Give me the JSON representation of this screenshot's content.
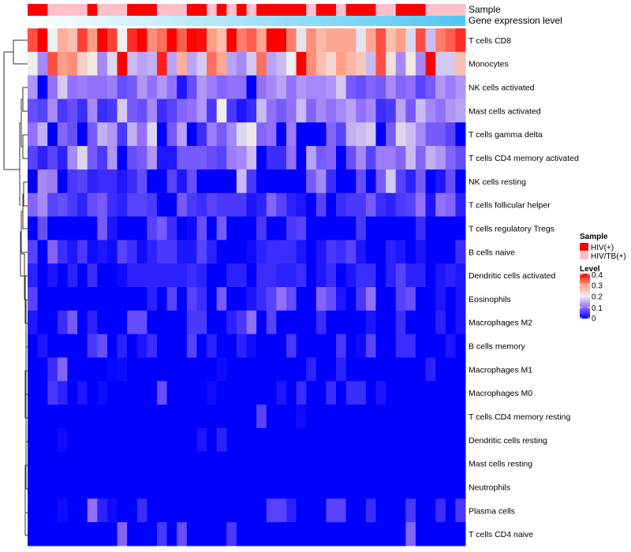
{
  "chart_data": {
    "type": "heatmap",
    "annotations": {
      "sample_label": "Sample",
      "gene_label": "Gene expression level"
    },
    "rows": [
      "T cells CD8",
      "Monocytes",
      "NK cells activated",
      "Mast cells activated",
      "T cells gamma delta",
      "T cells CD4 memory activated",
      "NK cells resting",
      "T cells follicular helper",
      "T cells regulatory  Tregs",
      "B cells naive",
      "Dendritic cells activated",
      "Eosinophils",
      "Macrophages M2",
      "B cells memory",
      "Macrophages M1",
      "Macrophages M0",
      "T cells CD4 memory resting",
      "Dendritic cells resting",
      "Mast cells resting",
      "Neutrophils",
      "Plasma cells",
      "T cells CD4 naive"
    ],
    "sample_groups": [
      1,
      1,
      2,
      2,
      2,
      2,
      1,
      2,
      2,
      2,
      1,
      1,
      1,
      2,
      2,
      2,
      1,
      1,
      2,
      1,
      2,
      1,
      2,
      1,
      1,
      1,
      1,
      1,
      2,
      1,
      1,
      2,
      1,
      1,
      1,
      2,
      2,
      1,
      1,
      1,
      2,
      2,
      2,
      2
    ],
    "values": [
      [
        0.35,
        0.4,
        0.2,
        0.28,
        0.26,
        0.36,
        0.3,
        0.4,
        0.36,
        0.2,
        0.37,
        0.4,
        0.31,
        0.33,
        0.4,
        0.34,
        0.4,
        0.39,
        0.3,
        0.26,
        0.4,
        0.32,
        0.34,
        0.29,
        0.4,
        0.4,
        0.32,
        0.19,
        0.31,
        0.27,
        0.29,
        0.29,
        0.29,
        0.19,
        0.29,
        0.35,
        0.26,
        0.3,
        0.18,
        0.35,
        0.16,
        0.32,
        0.34,
        0.37
      ],
      [
        0.2,
        0.12,
        0.35,
        0.3,
        0.31,
        0.24,
        0.21,
        0.12,
        0.18,
        0.4,
        0.16,
        0.14,
        0.15,
        0.38,
        0.14,
        0.28,
        0.14,
        0.17,
        0.33,
        0.29,
        0.14,
        0.12,
        0.17,
        0.33,
        0.14,
        0.16,
        0.2,
        0.4,
        0.31,
        0.26,
        0.23,
        0.3,
        0.27,
        0.25,
        0.16,
        0.35,
        0.22,
        0.12,
        0.21,
        0.12,
        0.4,
        0.17,
        0.17,
        0.26
      ],
      [
        0.13,
        0.0,
        0.1,
        0.17,
        0.1,
        0.11,
        0.1,
        0.1,
        0.11,
        0.07,
        0.08,
        0.13,
        0.1,
        0.13,
        0.1,
        0.02,
        0.07,
        0.13,
        0.11,
        0.09,
        0.1,
        0.1,
        0.0,
        0.1,
        0.12,
        0.14,
        0.1,
        0.13,
        0.12,
        0.12,
        0.13,
        0.17,
        0.08,
        0.07,
        0.09,
        0.08,
        0.12,
        0.09,
        0.1,
        0.06,
        0.08,
        0.13,
        0.11,
        0.13
      ],
      [
        0.07,
        0.06,
        0.12,
        0.05,
        0.07,
        0.04,
        0.12,
        0.04,
        0.05,
        0.17,
        0.08,
        0.07,
        0.12,
        0.04,
        0.06,
        0.09,
        0.1,
        0.13,
        0.05,
        0.2,
        0.05,
        0.02,
        0.04,
        0.16,
        0.1,
        0.08,
        0.1,
        0.16,
        0.09,
        0.12,
        0.1,
        0.12,
        0.14,
        0.1,
        0.12,
        0.04,
        0.05,
        0.14,
        0.08,
        0.16,
        0.12,
        0.1,
        0.13,
        0.14
      ],
      [
        0.1,
        0.15,
        0.0,
        0.09,
        0.07,
        0.0,
        0.08,
        0.15,
        0.13,
        0.05,
        0.15,
        0.1,
        0.18,
        0.0,
        0.08,
        0.14,
        0.0,
        0.04,
        0.11,
        0.08,
        0.12,
        0.18,
        0.21,
        0.09,
        0.1,
        0.0,
        0.11,
        0.0,
        0.0,
        0.0,
        0.09,
        0.06,
        0.15,
        0.16,
        0.17,
        0.0,
        0.08,
        0.18,
        0.16,
        0.12,
        0.08,
        0.08,
        0.06,
        0.0
      ],
      [
        0.06,
        0.03,
        0.06,
        0.03,
        0.12,
        0.18,
        0.08,
        0.05,
        0.13,
        0.0,
        0.07,
        0.08,
        0.13,
        0.02,
        0.02,
        0.08,
        0.08,
        0.08,
        0.07,
        0.06,
        0.11,
        0.12,
        0.16,
        0.0,
        0.04,
        0.04,
        0.1,
        0.0,
        0.14,
        0.08,
        0.09,
        0.0,
        0.07,
        0.12,
        0.06,
        0.11,
        0.11,
        0.09,
        0.16,
        0.09,
        0.15,
        0.13,
        0.09,
        0.07
      ],
      [
        0.0,
        0.12,
        0.11,
        0.0,
        0.05,
        0.06,
        0.03,
        0.04,
        0.04,
        0.02,
        0.04,
        0.07,
        0.0,
        0.0,
        0.06,
        0.02,
        0.07,
        0.0,
        0.0,
        0.0,
        0.0,
        0.16,
        0.05,
        0.0,
        0.0,
        0.0,
        0.0,
        0.0,
        0.08,
        0.12,
        0.04,
        0.0,
        0.0,
        0.07,
        0.0,
        0.08,
        0.17,
        0.06,
        0.03,
        0.08,
        0.0,
        0.02,
        0.07,
        0.0
      ],
      [
        0.09,
        0.12,
        0.06,
        0.07,
        0.05,
        0.03,
        0.07,
        0.08,
        0.04,
        0.03,
        0.06,
        0.06,
        0.05,
        0.0,
        0.0,
        0.08,
        0.05,
        0.04,
        0.06,
        0.05,
        0.05,
        0.05,
        0.02,
        0.03,
        0.09,
        0.06,
        0.03,
        0.02,
        0.0,
        0.06,
        0.0,
        0.04,
        0.05,
        0.05,
        0.08,
        0.04,
        0.03,
        0.05,
        0.06,
        0.1,
        0.02,
        0.1,
        0.09,
        0.03
      ],
      [
        0.0,
        0.07,
        0.0,
        0.0,
        0.0,
        0.0,
        0.0,
        0.08,
        0.02,
        0.0,
        0.0,
        0.0,
        0.06,
        0.08,
        0.04,
        0.0,
        0.01,
        0.07,
        0.0,
        0.08,
        0.0,
        0.0,
        0.0,
        0.05,
        0.0,
        0.0,
        0.05,
        0.06,
        0.0,
        0.0,
        0.0,
        0.0,
        0.0,
        0.05,
        0.0,
        0.0,
        0.0,
        0.0,
        0.0,
        0.04,
        0.0,
        0.0,
        0.0,
        0.0
      ],
      [
        0.06,
        0.0,
        0.09,
        0.04,
        0.02,
        0.05,
        0.01,
        0.02,
        0.01,
        0.06,
        0.04,
        0.01,
        0.03,
        0.05,
        0.05,
        0.02,
        0.02,
        0.06,
        0.03,
        0.0,
        0.0,
        0.0,
        0.01,
        0.03,
        0.04,
        0.04,
        0.04,
        0.02,
        0.0,
        0.02,
        0.05,
        0.04,
        0.06,
        0.02,
        0.0,
        0.0,
        0.03,
        0.02,
        0.0,
        0.02,
        0.0,
        0.0,
        0.0,
        0.04
      ],
      [
        0.03,
        0.0,
        0.02,
        0.0,
        0.03,
        0.0,
        0.04,
        0.0,
        0.0,
        0.01,
        0.03,
        0.03,
        0.03,
        0.03,
        0.03,
        0.03,
        0.04,
        0.03,
        0.0,
        0.0,
        0.03,
        0.03,
        0.0,
        0.04,
        0.04,
        0.03,
        0.03,
        0.04,
        0.0,
        0.02,
        0.04,
        0.0,
        0.02,
        0.04,
        0.04,
        0.0,
        0.03,
        0.06,
        0.03,
        0.03,
        0.0,
        0.02,
        0.03,
        0.02
      ],
      [
        0.06,
        0,
        0,
        0,
        0,
        0,
        0,
        0,
        0,
        0,
        0,
        0,
        0.03,
        0,
        0.06,
        0,
        0.06,
        0.04,
        0,
        0.08,
        0,
        0,
        0.02,
        0.04,
        0.06,
        0.1,
        0.07,
        0,
        0,
        0.09,
        0.07,
        0.02,
        0,
        0.05,
        0.1,
        0,
        0,
        0.06,
        0.07,
        0,
        0,
        0.02,
        0,
        0.02
      ],
      [
        0.02,
        0,
        0,
        0.04,
        0.08,
        0,
        0.03,
        0,
        0,
        0,
        0.07,
        0.07,
        0,
        0,
        0,
        0,
        0.05,
        0.05,
        0,
        0,
        0.03,
        0.05,
        0.1,
        0,
        0.06,
        0,
        0,
        0,
        0,
        0.04,
        0,
        0,
        0,
        0,
        0.02,
        0,
        0,
        0.04,
        0,
        0,
        0,
        0.03,
        0,
        0.02
      ],
      [
        0,
        0.02,
        0,
        0,
        0,
        0,
        0.05,
        0.07,
        0,
        0.03,
        0,
        0.02,
        0.04,
        0,
        0,
        0,
        0.06,
        0,
        0.03,
        0,
        0,
        0.03,
        0.01,
        0,
        0,
        0,
        0.05,
        0,
        0,
        0,
        0,
        0.05,
        0,
        0.01,
        0.06,
        0,
        0,
        0.04,
        0.04,
        0,
        0,
        0,
        0.02,
        0
      ],
      [
        0,
        0,
        0.04,
        0.09,
        0,
        0,
        0,
        0,
        0.005,
        0.01,
        0,
        0,
        0,
        0,
        0,
        0,
        0,
        0,
        0,
        0.01,
        0,
        0,
        0,
        0,
        0,
        0,
        0,
        0,
        0.03,
        0,
        0,
        0.03,
        0,
        0,
        0,
        0,
        0,
        0,
        0,
        0,
        0.03,
        0,
        0,
        0
      ],
      [
        0,
        0,
        0.05,
        0.03,
        0,
        0.02,
        0,
        0.01,
        0,
        0,
        0,
        0,
        0,
        0.07,
        0,
        0,
        0,
        0,
        0.01,
        0,
        0,
        0,
        0,
        0,
        0,
        0.02,
        0,
        0.04,
        0,
        0,
        0.04,
        0,
        0.04,
        0.04,
        0,
        0.02,
        0,
        0,
        0,
        0,
        0,
        0,
        0,
        0
      ],
      [
        0,
        0,
        0,
        0,
        0,
        0,
        0,
        0,
        0,
        0,
        0,
        0,
        0,
        0,
        0,
        0,
        0,
        0,
        0,
        0,
        0,
        0,
        0,
        0.06,
        0,
        0,
        0,
        0.01,
        0,
        0,
        0,
        0,
        0,
        0,
        0,
        0,
        0,
        0,
        0,
        0,
        0,
        0,
        0,
        0
      ],
      [
        0,
        0,
        0,
        0.01,
        0,
        0,
        0,
        0,
        0,
        0,
        0,
        0,
        0,
        0,
        0,
        0,
        0,
        0.02,
        0,
        0.03,
        0,
        0,
        0,
        0,
        0,
        0,
        0,
        0,
        0,
        0,
        0,
        0,
        0,
        0,
        0,
        0,
        0,
        0,
        0,
        0,
        0,
        0,
        0,
        0
      ],
      [
        0,
        0,
        0,
        0,
        0,
        0,
        0,
        0,
        0,
        0,
        0,
        0,
        0,
        0,
        0,
        0,
        0,
        0,
        0,
        0,
        0,
        0,
        0,
        0,
        0,
        0,
        0,
        0,
        0,
        0,
        0,
        0,
        0,
        0,
        0,
        0,
        0,
        0,
        0,
        0,
        0,
        0,
        0,
        0
      ],
      [
        0,
        0,
        0,
        0,
        0,
        0,
        0,
        0,
        0,
        0,
        0,
        0,
        0,
        0,
        0,
        0,
        0,
        0,
        0,
        0,
        0,
        0,
        0,
        0,
        0,
        0,
        0,
        0,
        0,
        0,
        0,
        0,
        0,
        0,
        0,
        0,
        0,
        0,
        0,
        0,
        0,
        0,
        0,
        0
      ],
      [
        0,
        0,
        0,
        0.01,
        0,
        0,
        0.1,
        0.03,
        0.01,
        0,
        0,
        0.04,
        0,
        0,
        0,
        0,
        0,
        0,
        0,
        0,
        0,
        0,
        0,
        0,
        0.06,
        0.06,
        0.03,
        0,
        0,
        0,
        0.06,
        0.06,
        0,
        0,
        0.04,
        0,
        0,
        0,
        0.05,
        0,
        0,
        0.04,
        0,
        0.05
      ],
      [
        0,
        0,
        0,
        0,
        0,
        0,
        0,
        0,
        0,
        0.09,
        0,
        0,
        0,
        0.05,
        0,
        0.07,
        0,
        0,
        0,
        0,
        0.05,
        0,
        0,
        0,
        0,
        0,
        0,
        0,
        0,
        0,
        0,
        0,
        0,
        0,
        0,
        0,
        0,
        0,
        0.09,
        0,
        0,
        0,
        0,
        0
      ]
    ],
    "color_scale": {
      "min": 0,
      "max": 0.4,
      "stops": [
        [
          0,
          "#0000ff"
        ],
        [
          0.1,
          "#9370fa"
        ],
        [
          0.2,
          "#efefef"
        ],
        [
          0.3,
          "#ff9e86"
        ],
        [
          0.4,
          "#ff0000"
        ]
      ]
    },
    "legend": {
      "placement": "right",
      "sample_title": "Sample",
      "sample_entries": [
        {
          "label": "HIV(+)",
          "color": "#ff0000"
        },
        {
          "label": "HIV/TB(+)",
          "color": "#ffc0cb"
        }
      ],
      "level_title": "Level",
      "level_ticks": [
        "0.4",
        "0.3",
        "0.2",
        "0.1",
        "0"
      ],
      "level_tick_values": [
        0.4,
        0.3,
        0.2,
        0.1,
        0
      ]
    },
    "gene_gradient": {
      "from": "#ffffff",
      "to": "#4ec8f4"
    }
  }
}
